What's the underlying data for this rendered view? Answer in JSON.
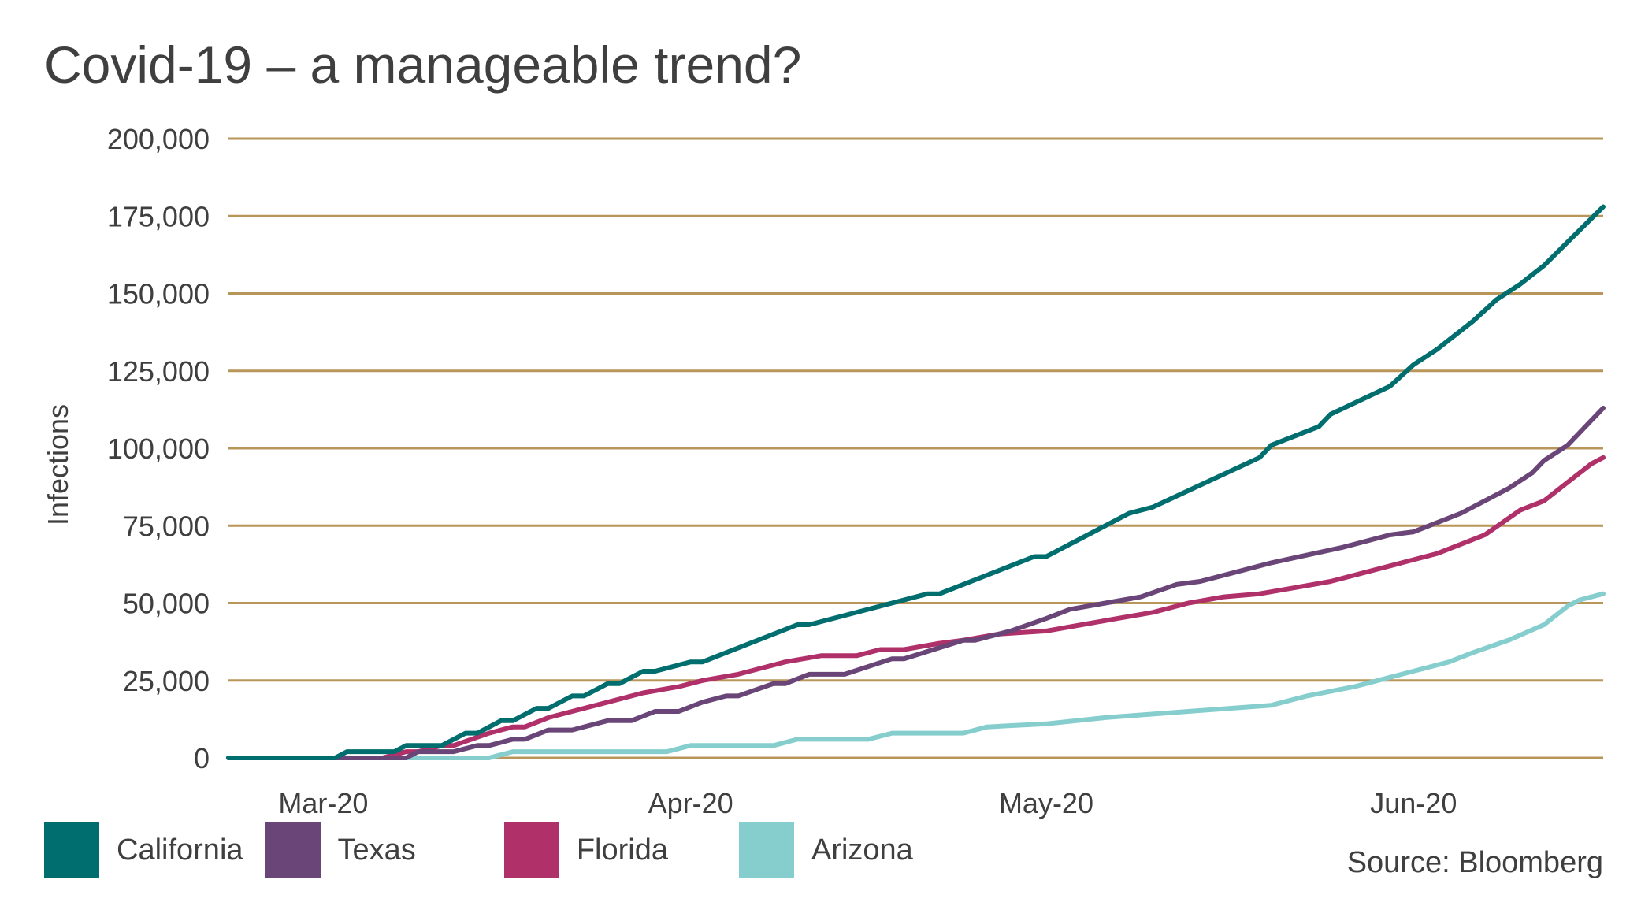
{
  "title": "Covid-19 – a manageable trend?",
  "source": "Source: Bloomberg",
  "colors": {
    "grid": "#b8965a",
    "text": "#3f3f3f",
    "California": "#006e6e",
    "Texas": "#6a4577",
    "Florida": "#b0306a",
    "Arizona": "#86cece"
  },
  "chart_data": {
    "type": "line",
    "title": "Covid-19 – a manageable trend?",
    "xlabel": "",
    "ylabel": "Infections",
    "ylim": [
      0,
      200000
    ],
    "yticks": [
      0,
      25000,
      50000,
      75000,
      100000,
      125000,
      150000,
      175000,
      200000
    ],
    "ytick_labels": [
      "0",
      "25,000",
      "50,000",
      "75,000",
      "100,000",
      "125,000",
      "150,000",
      "175,000",
      "200,000"
    ],
    "x_range": [
      "2020-02-22",
      "2020-06-17"
    ],
    "xtick_labels": [
      {
        "label": "Mar-20",
        "date": "2020-03-01"
      },
      {
        "label": "Apr-20",
        "date": "2020-04-01"
      },
      {
        "label": "May-20",
        "date": "2020-05-01"
      },
      {
        "label": "Jun-20",
        "date": "2020-06-01"
      }
    ],
    "grid": "horizontal",
    "legend": "bottom",
    "series": [
      {
        "name": "California",
        "points": [
          [
            "2020-02-22",
            0
          ],
          [
            "2020-03-02",
            0
          ],
          [
            "2020-03-03",
            2000
          ],
          [
            "2020-03-07",
            2000
          ],
          [
            "2020-03-08",
            4000
          ],
          [
            "2020-03-11",
            4000
          ],
          [
            "2020-03-13",
            8000
          ],
          [
            "2020-03-14",
            8000
          ],
          [
            "2020-03-16",
            12000
          ],
          [
            "2020-03-17",
            12000
          ],
          [
            "2020-03-19",
            16000
          ],
          [
            "2020-03-20",
            16000
          ],
          [
            "2020-03-22",
            20000
          ],
          [
            "2020-03-23",
            20000
          ],
          [
            "2020-03-25",
            24000
          ],
          [
            "2020-03-26",
            24000
          ],
          [
            "2020-03-28",
            28000
          ],
          [
            "2020-03-29",
            28000
          ],
          [
            "2020-04-01",
            31000
          ],
          [
            "2020-04-02",
            31000
          ],
          [
            "2020-04-10",
            43000
          ],
          [
            "2020-04-11",
            43000
          ],
          [
            "2020-04-21",
            53000
          ],
          [
            "2020-04-22",
            53000
          ],
          [
            "2020-04-28",
            62000
          ],
          [
            "2020-04-30",
            65000
          ],
          [
            "2020-05-01",
            65000
          ],
          [
            "2020-05-08",
            79000
          ],
          [
            "2020-05-10",
            81000
          ],
          [
            "2020-05-19",
            97000
          ],
          [
            "2020-05-20",
            101000
          ],
          [
            "2020-05-24",
            107000
          ],
          [
            "2020-05-25",
            111000
          ],
          [
            "2020-05-30",
            120000
          ],
          [
            "2020-06-01",
            127000
          ],
          [
            "2020-06-03",
            132000
          ],
          [
            "2020-06-04",
            135000
          ],
          [
            "2020-06-06",
            141000
          ],
          [
            "2020-06-08",
            148000
          ],
          [
            "2020-06-10",
            153000
          ],
          [
            "2020-06-11",
            156000
          ],
          [
            "2020-06-12",
            159000
          ],
          [
            "2020-06-17",
            178000
          ]
        ]
      },
      {
        "name": "Texas",
        "points": [
          [
            "2020-02-22",
            0
          ],
          [
            "2020-03-08",
            0
          ],
          [
            "2020-03-09",
            2000
          ],
          [
            "2020-03-12",
            2000
          ],
          [
            "2020-03-14",
            4000
          ],
          [
            "2020-03-15",
            4000
          ],
          [
            "2020-03-17",
            6000
          ],
          [
            "2020-03-18",
            6000
          ],
          [
            "2020-03-20",
            9000
          ],
          [
            "2020-03-22",
            9000
          ],
          [
            "2020-03-25",
            12000
          ],
          [
            "2020-03-27",
            12000
          ],
          [
            "2020-03-29",
            15000
          ],
          [
            "2020-03-31",
            15000
          ],
          [
            "2020-04-02",
            18000
          ],
          [
            "2020-04-04",
            20000
          ],
          [
            "2020-04-05",
            20000
          ],
          [
            "2020-04-08",
            24000
          ],
          [
            "2020-04-09",
            24000
          ],
          [
            "2020-04-11",
            27000
          ],
          [
            "2020-04-14",
            27000
          ],
          [
            "2020-04-18",
            32000
          ],
          [
            "2020-04-19",
            32000
          ],
          [
            "2020-04-24",
            38000
          ],
          [
            "2020-04-25",
            38000
          ],
          [
            "2020-04-28",
            41000
          ],
          [
            "2020-05-01",
            45000
          ],
          [
            "2020-05-03",
            48000
          ],
          [
            "2020-05-06",
            50000
          ],
          [
            "2020-05-09",
            52000
          ],
          [
            "2020-05-12",
            56000
          ],
          [
            "2020-05-14",
            57000
          ],
          [
            "2020-05-17",
            60000
          ],
          [
            "2020-05-20",
            63000
          ],
          [
            "2020-05-26",
            68000
          ],
          [
            "2020-05-30",
            72000
          ],
          [
            "2020-06-01",
            73000
          ],
          [
            "2020-06-05",
            79000
          ],
          [
            "2020-06-09",
            87000
          ],
          [
            "2020-06-11",
            92000
          ],
          [
            "2020-06-12",
            96000
          ],
          [
            "2020-06-14",
            101000
          ],
          [
            "2020-06-16",
            109000
          ],
          [
            "2020-06-17",
            113000
          ]
        ]
      },
      {
        "name": "Florida",
        "points": [
          [
            "2020-02-22",
            0
          ],
          [
            "2020-03-06",
            0
          ],
          [
            "2020-03-08",
            2000
          ],
          [
            "2020-03-09",
            2000
          ],
          [
            "2020-03-11",
            4000
          ],
          [
            "2020-03-12",
            4000
          ],
          [
            "2020-03-15",
            8000
          ],
          [
            "2020-03-17",
            10000
          ],
          [
            "2020-03-18",
            10000
          ],
          [
            "2020-03-20",
            13000
          ],
          [
            "2020-03-22",
            15000
          ],
          [
            "2020-03-25",
            18000
          ],
          [
            "2020-03-28",
            21000
          ],
          [
            "2020-03-31",
            23000
          ],
          [
            "2020-04-02",
            25000
          ],
          [
            "2020-04-05",
            27000
          ],
          [
            "2020-04-07",
            29000
          ],
          [
            "2020-04-09",
            31000
          ],
          [
            "2020-04-12",
            33000
          ],
          [
            "2020-04-15",
            33000
          ],
          [
            "2020-04-17",
            35000
          ],
          [
            "2020-04-19",
            35000
          ],
          [
            "2020-04-22",
            37000
          ],
          [
            "2020-04-24",
            38000
          ],
          [
            "2020-04-27",
            40000
          ],
          [
            "2020-05-01",
            41000
          ],
          [
            "2020-05-04",
            43000
          ],
          [
            "2020-05-07",
            45000
          ],
          [
            "2020-05-10",
            47000
          ],
          [
            "2020-05-13",
            50000
          ],
          [
            "2020-05-16",
            52000
          ],
          [
            "2020-05-19",
            53000
          ],
          [
            "2020-05-22",
            55000
          ],
          [
            "2020-05-25",
            57000
          ],
          [
            "2020-05-28",
            60000
          ],
          [
            "2020-05-31",
            63000
          ],
          [
            "2020-06-03",
            66000
          ],
          [
            "2020-06-07",
            72000
          ],
          [
            "2020-06-10",
            80000
          ],
          [
            "2020-06-12",
            83000
          ],
          [
            "2020-06-14",
            89000
          ],
          [
            "2020-06-16",
            95000
          ],
          [
            "2020-06-17",
            97000
          ]
        ]
      },
      {
        "name": "Arizona",
        "points": [
          [
            "2020-02-22",
            0
          ],
          [
            "2020-03-15",
            0
          ],
          [
            "2020-03-17",
            2000
          ],
          [
            "2020-03-30",
            2000
          ],
          [
            "2020-04-01",
            4000
          ],
          [
            "2020-04-08",
            4000
          ],
          [
            "2020-04-10",
            6000
          ],
          [
            "2020-04-16",
            6000
          ],
          [
            "2020-04-18",
            8000
          ],
          [
            "2020-04-24",
            8000
          ],
          [
            "2020-04-26",
            10000
          ],
          [
            "2020-05-01",
            11000
          ],
          [
            "2020-05-06",
            13000
          ],
          [
            "2020-05-13",
            15000
          ],
          [
            "2020-05-20",
            17000
          ],
          [
            "2020-05-23",
            20000
          ],
          [
            "2020-05-27",
            23000
          ],
          [
            "2020-05-30",
            26000
          ],
          [
            "2020-06-02",
            29000
          ],
          [
            "2020-06-04",
            31000
          ],
          [
            "2020-06-06",
            34000
          ],
          [
            "2020-06-09",
            38000
          ],
          [
            "2020-06-12",
            43000
          ],
          [
            "2020-06-14",
            49000
          ],
          [
            "2020-06-15",
            51000
          ],
          [
            "2020-06-17",
            53000
          ]
        ]
      }
    ]
  }
}
